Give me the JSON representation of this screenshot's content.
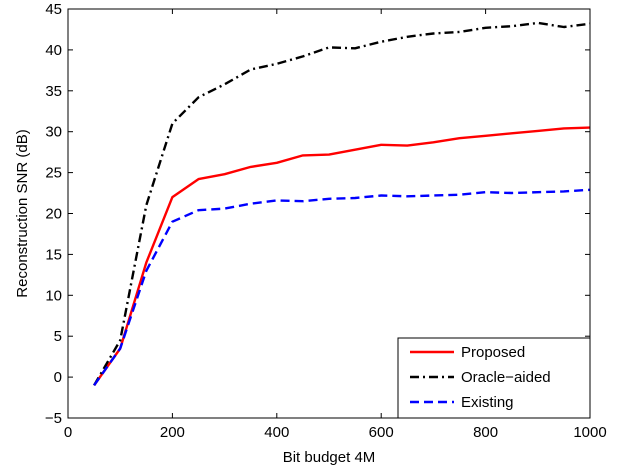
{
  "chart_data": {
    "type": "line",
    "title": "",
    "xlabel": "Bit budget 4M",
    "ylabel": "Reconstruction SNR (dB)",
    "xlim": [
      0,
      1000
    ],
    "ylim": [
      -5,
      45
    ],
    "xticks": [
      0,
      200,
      400,
      600,
      800,
      1000
    ],
    "yticks": [
      -5,
      0,
      5,
      10,
      15,
      20,
      25,
      30,
      35,
      40,
      45
    ],
    "xtick_labels": [
      "0",
      "200",
      "400",
      "600",
      "800",
      "1000"
    ],
    "ytick_labels": [
      "−5",
      "0",
      "5",
      "10",
      "15",
      "20",
      "25",
      "30",
      "35",
      "40",
      "45"
    ],
    "grid": false,
    "legend_position": "bottom-right",
    "x": [
      50,
      100,
      150,
      200,
      250,
      300,
      350,
      400,
      450,
      500,
      550,
      600,
      650,
      700,
      750,
      800,
      850,
      900,
      950,
      1000
    ],
    "series": [
      {
        "name": "Proposed",
        "color": "#ff0000",
        "dash": "solid",
        "values": [
          -1,
          3.5,
          14,
          22,
          24.2,
          24.8,
          25.7,
          26.2,
          27.1,
          27.2,
          27.8,
          28.4,
          28.3,
          28.7,
          29.2,
          29.5,
          29.8,
          30.1,
          30.4,
          30.5
        ]
      },
      {
        "name": "Oracle−aided",
        "color": "#000000",
        "dash": "dashdot",
        "values": [
          -1,
          4.5,
          21,
          31,
          34.2,
          35.8,
          37.6,
          38.3,
          39.2,
          40.3,
          40.2,
          41,
          41.6,
          42,
          42.2,
          42.7,
          42.9,
          43.3,
          42.8,
          43.2
        ]
      },
      {
        "name": "Existing",
        "color": "#0000ff",
        "dash": "dashed",
        "values": [
          -1,
          3.5,
          13,
          19,
          20.4,
          20.6,
          21.2,
          21.6,
          21.5,
          21.8,
          21.9,
          22.2,
          22.1,
          22.2,
          22.3,
          22.6,
          22.5,
          22.6,
          22.7,
          22.9
        ]
      }
    ]
  }
}
